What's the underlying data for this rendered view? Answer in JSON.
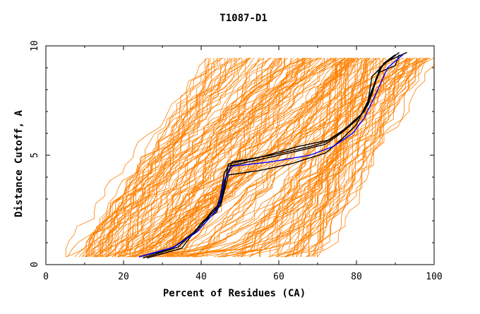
{
  "chart_data": {
    "type": "line",
    "title": "T1087-D1",
    "xlabel": "Percent of Residues (CA)",
    "ylabel": "Distance Cutoff, A",
    "xlim": [
      0,
      100
    ],
    "ylim": [
      0,
      10
    ],
    "x_ticks": [
      "0",
      "20",
      "40",
      "60",
      "80",
      "100"
    ],
    "y_ticks": [
      "0",
      "5",
      "10"
    ],
    "grid": false,
    "legend": "none",
    "background_series_color": "#ff8000",
    "background_series_count": 180,
    "background_series_description": "many prediction curves in orange spanning the full x range from about 5% to 100%",
    "highlight_series": [
      {
        "color": "#000000",
        "points": [
          [
            24,
            0.35
          ],
          [
            33,
            0.8
          ],
          [
            39,
            1.6
          ],
          [
            42,
            2.2
          ],
          [
            44,
            2.6
          ],
          [
            45,
            3.2
          ],
          [
            46,
            4.2
          ],
          [
            47,
            4.5
          ],
          [
            55,
            4.8
          ],
          [
            65,
            5.2
          ],
          [
            72,
            5.5
          ],
          [
            76,
            6.0
          ],
          [
            80,
            6.6
          ],
          [
            83,
            7.3
          ],
          [
            85,
            8.5
          ],
          [
            87,
            9.2
          ],
          [
            90,
            9.6
          ]
        ]
      },
      {
        "color": "#000000",
        "points": [
          [
            25,
            0.3
          ],
          [
            34,
            0.8
          ],
          [
            40,
            1.8
          ],
          [
            43,
            2.5
          ],
          [
            45,
            2.8
          ],
          [
            46,
            3.6
          ],
          [
            47,
            4.6
          ],
          [
            55,
            4.9
          ],
          [
            65,
            5.4
          ],
          [
            73,
            5.7
          ],
          [
            78,
            6.3
          ],
          [
            82,
            7.0
          ],
          [
            84,
            7.8
          ],
          [
            86,
            9.0
          ],
          [
            91,
            9.7
          ]
        ]
      },
      {
        "color": "#000000",
        "points": [
          [
            24,
            0.35
          ],
          [
            32,
            0.7
          ],
          [
            38,
            1.4
          ],
          [
            41,
            2.0
          ],
          [
            44,
            2.4
          ],
          [
            45,
            2.9
          ],
          [
            46,
            3.8
          ],
          [
            48,
            4.7
          ],
          [
            58,
            5.0
          ],
          [
            68,
            5.4
          ],
          [
            72,
            5.6
          ],
          [
            77,
            6.2
          ],
          [
            82,
            7.0
          ],
          [
            84,
            8.0
          ],
          [
            86,
            8.8
          ],
          [
            90,
            9.1
          ],
          [
            91,
            9.6
          ]
        ]
      },
      {
        "color": "#000000",
        "points": [
          [
            26,
            0.3
          ],
          [
            35,
            0.75
          ],
          [
            40,
            1.9
          ],
          [
            43,
            2.4
          ],
          [
            45,
            2.7
          ],
          [
            46,
            3.4
          ],
          [
            47,
            4.1
          ],
          [
            55,
            4.3
          ],
          [
            63,
            4.6
          ],
          [
            72,
            5.1
          ],
          [
            76,
            5.7
          ],
          [
            80,
            6.4
          ],
          [
            83,
            7.5
          ],
          [
            84,
            8.6
          ],
          [
            88,
            9.3
          ],
          [
            93,
            9.7
          ]
        ]
      },
      {
        "color": "#0000ff",
        "points": [
          [
            24,
            0.35
          ],
          [
            33,
            0.8
          ],
          [
            39,
            1.5
          ],
          [
            42,
            2.1
          ],
          [
            44,
            2.5
          ],
          [
            45,
            3.0
          ],
          [
            46,
            3.9
          ],
          [
            48,
            4.5
          ],
          [
            58,
            4.7
          ],
          [
            68,
            5.0
          ],
          [
            74,
            5.4
          ],
          [
            79,
            6.0
          ],
          [
            82,
            6.7
          ],
          [
            85,
            7.8
          ],
          [
            88,
            9.0
          ],
          [
            92,
            9.6
          ]
        ]
      }
    ]
  }
}
